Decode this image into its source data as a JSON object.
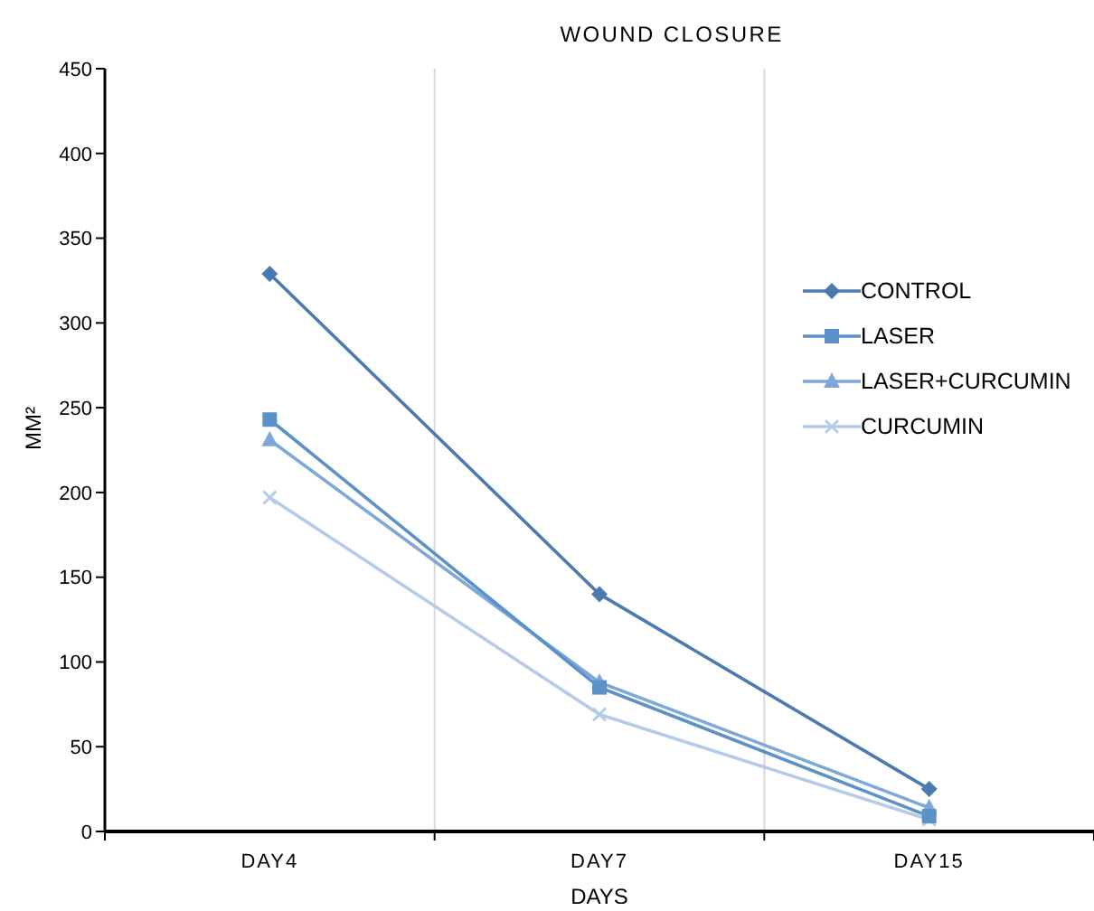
{
  "chart_data": {
    "type": "line",
    "title": "WOUND CLOSURE",
    "xlabel": "DAYS",
    "ylabel": "MM²",
    "categories": [
      "DAY4",
      "DAY7",
      "DAY15"
    ],
    "series": [
      {
        "name": "CONTROL",
        "color": "#4a7ab0",
        "marker": "diamond",
        "values": [
          329,
          140,
          25
        ]
      },
      {
        "name": "LASER",
        "color": "#5b90c8",
        "marker": "square",
        "values": [
          243,
          85,
          9
        ]
      },
      {
        "name": "LASER+CURCUMIN",
        "color": "#7ea8d8",
        "marker": "triangle",
        "values": [
          231,
          88,
          14
        ]
      },
      {
        "name": "CURCUMIN",
        "color": "#b4cbe8",
        "marker": "cross",
        "values": [
          197,
          69,
          7
        ]
      }
    ],
    "ylim": [
      0,
      450
    ],
    "yticks": [
      0,
      50,
      100,
      150,
      200,
      250,
      300,
      350,
      400,
      450
    ],
    "grid": "x",
    "legend": "right"
  }
}
